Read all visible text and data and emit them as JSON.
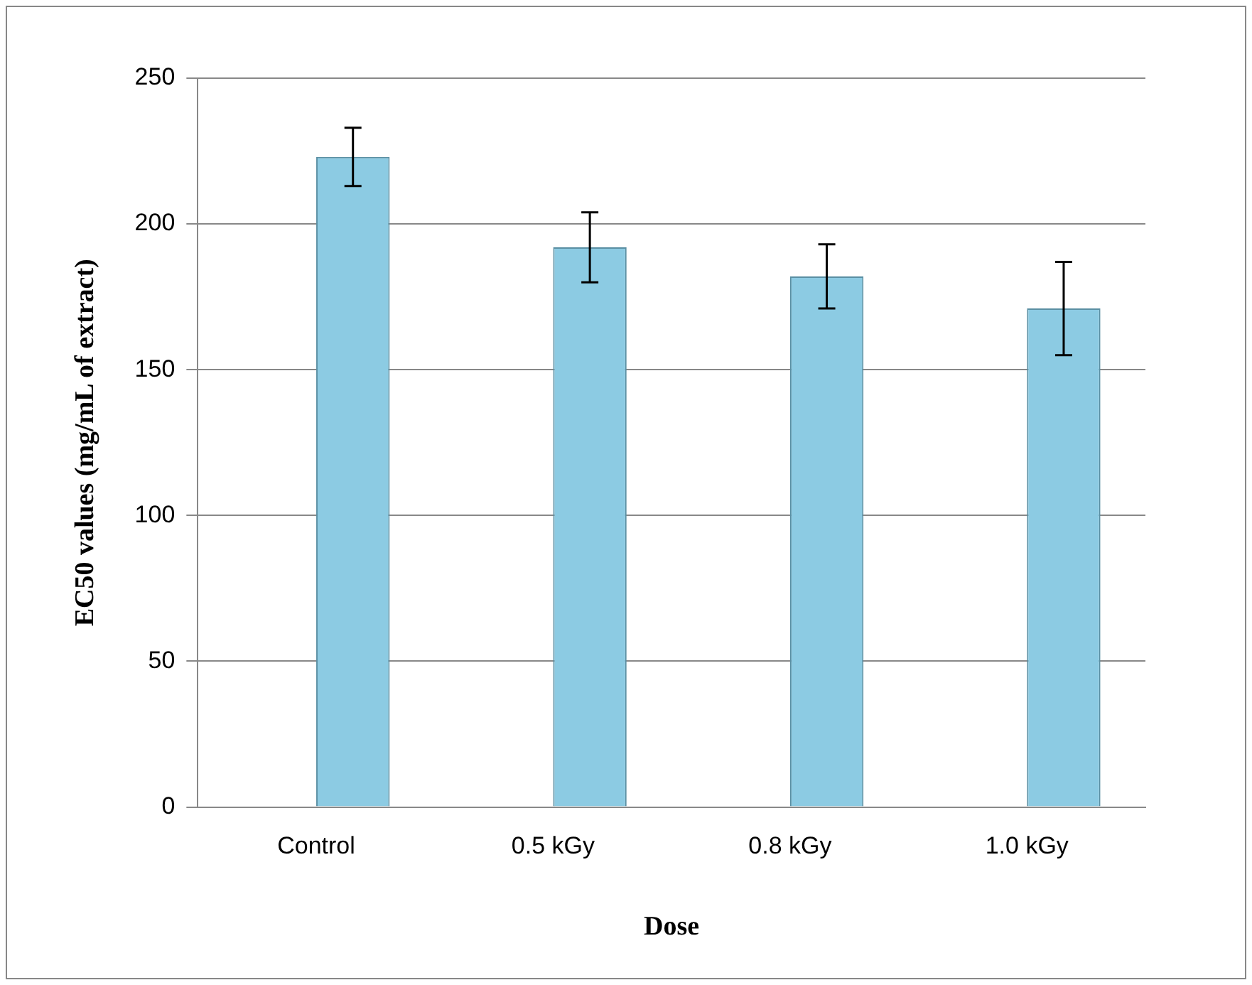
{
  "chart_data": {
    "type": "bar",
    "xlabel": "Dose",
    "ylabel": "EC50 values (mg/mL of extract)",
    "categories": [
      "Control",
      "0.5 kGy",
      "0.8 kGy",
      "1.0 kGy"
    ],
    "series": [
      {
        "color": "#8ecfe6",
        "values": [
          0,
          null,
          null,
          null
        ]
      },
      {
        "color": "#8ccbe3",
        "values": [
          223,
          192,
          182,
          171
        ],
        "errors": [
          10,
          12,
          11,
          16
        ]
      }
    ],
    "ylim": [
      0,
      250
    ],
    "yticks": [
      0,
      50,
      100,
      150,
      200,
      250
    ],
    "grid": "y",
    "legend": false
  }
}
